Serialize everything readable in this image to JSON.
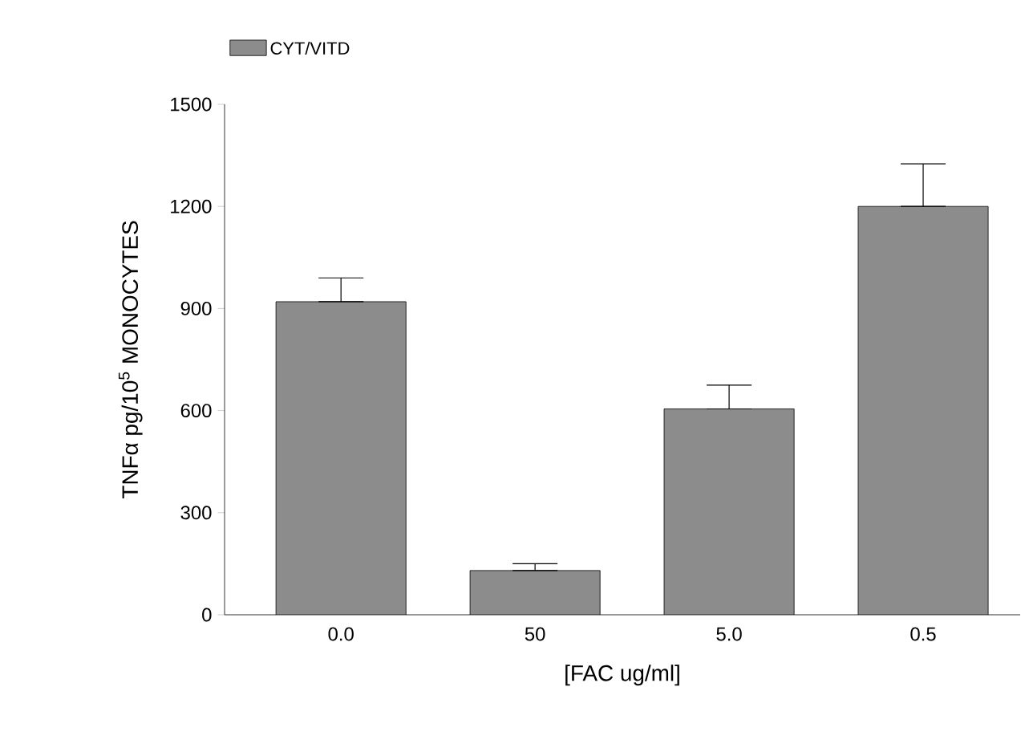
{
  "chart_data": {
    "type": "bar",
    "xlabel": "[FAC ug/ml]",
    "ylabel": "TNFα pg/10$^{5}$ MONOCYTES",
    "categories": [
      "0.0",
      "50",
      "5.0",
      "0.5"
    ],
    "series": [
      {
        "name": "CYT/VITD",
        "color": "#8c8c8c",
        "values": [
          920,
          130,
          605,
          1200
        ],
        "errors": [
          [
            920,
            990
          ],
          [
            130,
            150
          ],
          [
            605,
            675
          ],
          [
            1200,
            1325
          ]
        ]
      }
    ],
    "ylim": [
      0,
      1500
    ],
    "yticks": [
      0,
      300,
      600,
      900,
      1200,
      1500
    ],
    "legend": "top left"
  }
}
